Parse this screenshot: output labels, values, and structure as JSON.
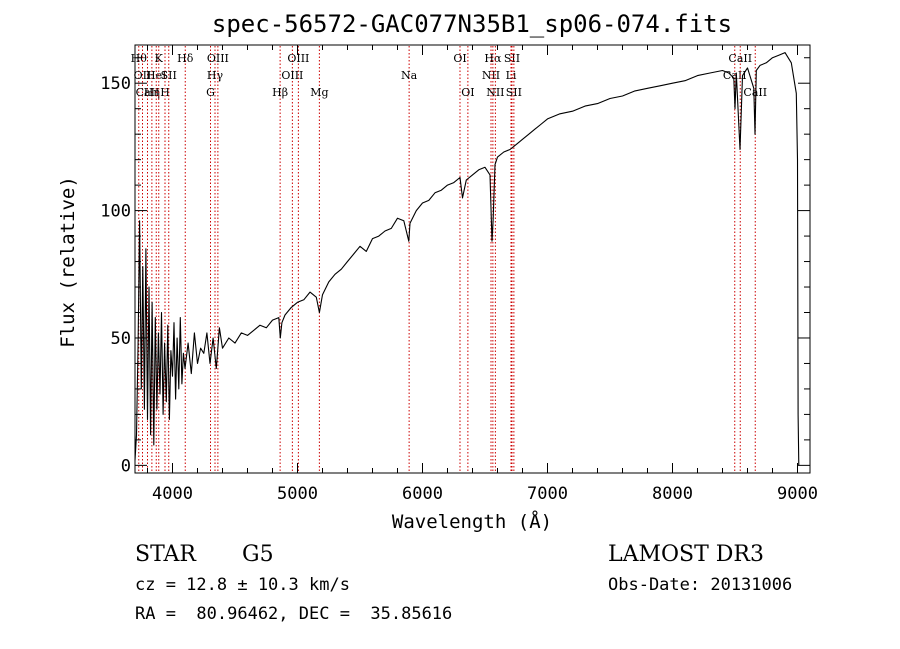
{
  "chart_data": {
    "type": "line",
    "title": "spec-56572-GAC077N35B1_sp06-074.fits",
    "xlabel": "Wavelength (Å)",
    "ylabel": "Flux (relative)",
    "xlim": [
      3700,
      9100
    ],
    "ylim": [
      -3,
      165
    ],
    "xticks": [
      {
        "value": 4000,
        "label": "4000"
      },
      {
        "value": 5000,
        "label": "5000"
      },
      {
        "value": 6000,
        "label": "6000"
      },
      {
        "value": 7000,
        "label": "7000"
      },
      {
        "value": 8000,
        "label": "8000"
      },
      {
        "value": 9000,
        "label": "9000"
      }
    ],
    "yticks": [
      {
        "value": 0,
        "label": "0"
      },
      {
        "value": 50,
        "label": "50"
      },
      {
        "value": 100,
        "label": "100"
      },
      {
        "value": 150,
        "label": "150"
      }
    ],
    "grid": false,
    "series": [
      {
        "name": "flux",
        "color": "#000000",
        "points": [
          [
            3700,
            2
          ],
          [
            3712,
            12
          ],
          [
            3725,
            48
          ],
          [
            3737,
            96
          ],
          [
            3750,
            30
          ],
          [
            3762,
            78
          ],
          [
            3775,
            22
          ],
          [
            3787,
            85
          ],
          [
            3800,
            18
          ],
          [
            3812,
            70
          ],
          [
            3825,
            12
          ],
          [
            3837,
            64
          ],
          [
            3850,
            8
          ],
          [
            3862,
            58
          ],
          [
            3875,
            22
          ],
          [
            3887,
            52
          ],
          [
            3900,
            28
          ],
          [
            3912,
            60
          ],
          [
            3925,
            20
          ],
          [
            3937,
            48
          ],
          [
            3950,
            25
          ],
          [
            3962,
            55
          ],
          [
            3975,
            18
          ],
          [
            3987,
            45
          ],
          [
            4000,
            35
          ],
          [
            4012,
            56
          ],
          [
            4025,
            26
          ],
          [
            4037,
            50
          ],
          [
            4050,
            30
          ],
          [
            4062,
            58
          ],
          [
            4075,
            32
          ],
          [
            4087,
            44
          ],
          [
            4100,
            38
          ],
          [
            4125,
            48
          ],
          [
            4150,
            36
          ],
          [
            4175,
            52
          ],
          [
            4200,
            40
          ],
          [
            4225,
            46
          ],
          [
            4250,
            44
          ],
          [
            4275,
            52
          ],
          [
            4300,
            40
          ],
          [
            4325,
            50
          ],
          [
            4350,
            38
          ],
          [
            4375,
            54
          ],
          [
            4400,
            46
          ],
          [
            4450,
            50
          ],
          [
            4500,
            48
          ],
          [
            4550,
            52
          ],
          [
            4600,
            51
          ],
          [
            4650,
            53
          ],
          [
            4700,
            55
          ],
          [
            4750,
            54
          ],
          [
            4800,
            57
          ],
          [
            4850,
            58
          ],
          [
            4862,
            50
          ],
          [
            4875,
            56
          ],
          [
            4900,
            59
          ],
          [
            4950,
            62
          ],
          [
            5000,
            64
          ],
          [
            5050,
            65
          ],
          [
            5100,
            68
          ],
          [
            5150,
            66
          ],
          [
            5175,
            60
          ],
          [
            5200,
            67
          ],
          [
            5250,
            72
          ],
          [
            5300,
            75
          ],
          [
            5350,
            77
          ],
          [
            5400,
            80
          ],
          [
            5450,
            83
          ],
          [
            5500,
            86
          ],
          [
            5550,
            84
          ],
          [
            5600,
            89
          ],
          [
            5650,
            90
          ],
          [
            5700,
            92
          ],
          [
            5750,
            93
          ],
          [
            5800,
            97
          ],
          [
            5850,
            96
          ],
          [
            5890,
            88
          ],
          [
            5900,
            95
          ],
          [
            5950,
            100
          ],
          [
            6000,
            103
          ],
          [
            6050,
            104
          ],
          [
            6100,
            107
          ],
          [
            6150,
            108
          ],
          [
            6200,
            110
          ],
          [
            6250,
            111
          ],
          [
            6300,
            113
          ],
          [
            6320,
            105
          ],
          [
            6350,
            112
          ],
          [
            6400,
            114
          ],
          [
            6450,
            116
          ],
          [
            6500,
            117
          ],
          [
            6540,
            114
          ],
          [
            6556,
            88
          ],
          [
            6565,
            96
          ],
          [
            6580,
            118
          ],
          [
            6600,
            121
          ],
          [
            6650,
            123
          ],
          [
            6700,
            124
          ],
          [
            6750,
            126
          ],
          [
            6800,
            128
          ],
          [
            6850,
            130
          ],
          [
            6900,
            132
          ],
          [
            6950,
            134
          ],
          [
            7000,
            136
          ],
          [
            7100,
            138
          ],
          [
            7200,
            139
          ],
          [
            7300,
            141
          ],
          [
            7400,
            142
          ],
          [
            7500,
            144
          ],
          [
            7600,
            145
          ],
          [
            7700,
            147
          ],
          [
            7800,
            148
          ],
          [
            7900,
            149
          ],
          [
            8000,
            150
          ],
          [
            8100,
            151
          ],
          [
            8200,
            153
          ],
          [
            8300,
            154
          ],
          [
            8400,
            155
          ],
          [
            8450,
            154
          ],
          [
            8490,
            152
          ],
          [
            8500,
            140
          ],
          [
            8510,
            154
          ],
          [
            8540,
            124
          ],
          [
            8560,
            153
          ],
          [
            8600,
            156
          ],
          [
            8650,
            148
          ],
          [
            8660,
            130
          ],
          [
            8670,
            155
          ],
          [
            8700,
            157
          ],
          [
            8750,
            158
          ],
          [
            8800,
            160
          ],
          [
            8850,
            161
          ],
          [
            8900,
            162
          ],
          [
            8950,
            158
          ],
          [
            8970,
            152
          ],
          [
            8990,
            146
          ],
          [
            9000,
            120
          ],
          [
            9005,
            20
          ],
          [
            9010,
            0
          ]
        ]
      }
    ],
    "lines": [
      {
        "value": 3730,
        "labels": [
          "Hθ"
        ],
        "row": 0
      },
      {
        "value": 3760,
        "labels": [
          "OII"
        ],
        "row": 1
      },
      {
        "value": 3800,
        "labels": [
          "CaII"
        ],
        "row": 2
      },
      {
        "value": 3835,
        "labels": [
          "Hη"
        ],
        "row": 2
      },
      {
        "value": 3870,
        "labels": [
          "HeI"
        ],
        "row": 1
      },
      {
        "value": 3890,
        "labels": [
          "K"
        ],
        "row": 0
      },
      {
        "value": 3940,
        "labels": [
          "H"
        ],
        "row": 2
      },
      {
        "value": 3970,
        "labels": [
          "SII"
        ],
        "row": 1
      },
      {
        "value": 4102,
        "labels": [
          "Hδ"
        ],
        "row": 0
      },
      {
        "value": 4304,
        "labels": [
          "G"
        ],
        "row": 2
      },
      {
        "value": 4340,
        "labels": [
          "Hγ"
        ],
        "row": 1
      },
      {
        "value": 4363,
        "labels": [
          "OIII"
        ],
        "row": 0
      },
      {
        "value": 4861,
        "labels": [
          "Hβ"
        ],
        "row": 2
      },
      {
        "value": 4959,
        "labels": [
          "OIII"
        ],
        "row": 1
      },
      {
        "value": 5007,
        "labels": [
          "OIII"
        ],
        "row": 0
      },
      {
        "value": 5175,
        "labels": [
          "Mg"
        ],
        "row": 2
      },
      {
        "value": 5893,
        "labels": [
          "Na"
        ],
        "row": 1
      },
      {
        "value": 6300,
        "labels": [
          "OI"
        ],
        "row": 0
      },
      {
        "value": 6363,
        "labels": [
          "OI"
        ],
        "row": 2
      },
      {
        "value": 6548,
        "labels": [
          "NII"
        ],
        "row": 1
      },
      {
        "value": 6563,
        "labels": [
          "Hα"
        ],
        "row": 0
      },
      {
        "value": 6583,
        "labels": [
          "NII"
        ],
        "row": 2
      },
      {
        "value": 6708,
        "labels": [
          "Li"
        ],
        "row": 1
      },
      {
        "value": 6716,
        "labels": [
          "SII"
        ],
        "row": 0
      },
      {
        "value": 6731,
        "labels": [
          "SII"
        ],
        "row": 2
      },
      {
        "value": 8498,
        "labels": [
          "CaII"
        ],
        "row": 1
      },
      {
        "value": 8542,
        "labels": [
          "CaII"
        ],
        "row": 0
      },
      {
        "value": 8662,
        "labels": [
          "CaII"
        ],
        "row": 2
      }
    ],
    "line_color": "#cc0000"
  },
  "info": {
    "object_class": "STAR",
    "subclass": "G5",
    "survey": "LAMOST DR3",
    "cz": "cz = 12.8 ± 10.3 km/s",
    "obs_date": "Obs-Date: 20131006",
    "coords": "RA =  80.96462, DEC =  35.85616"
  }
}
